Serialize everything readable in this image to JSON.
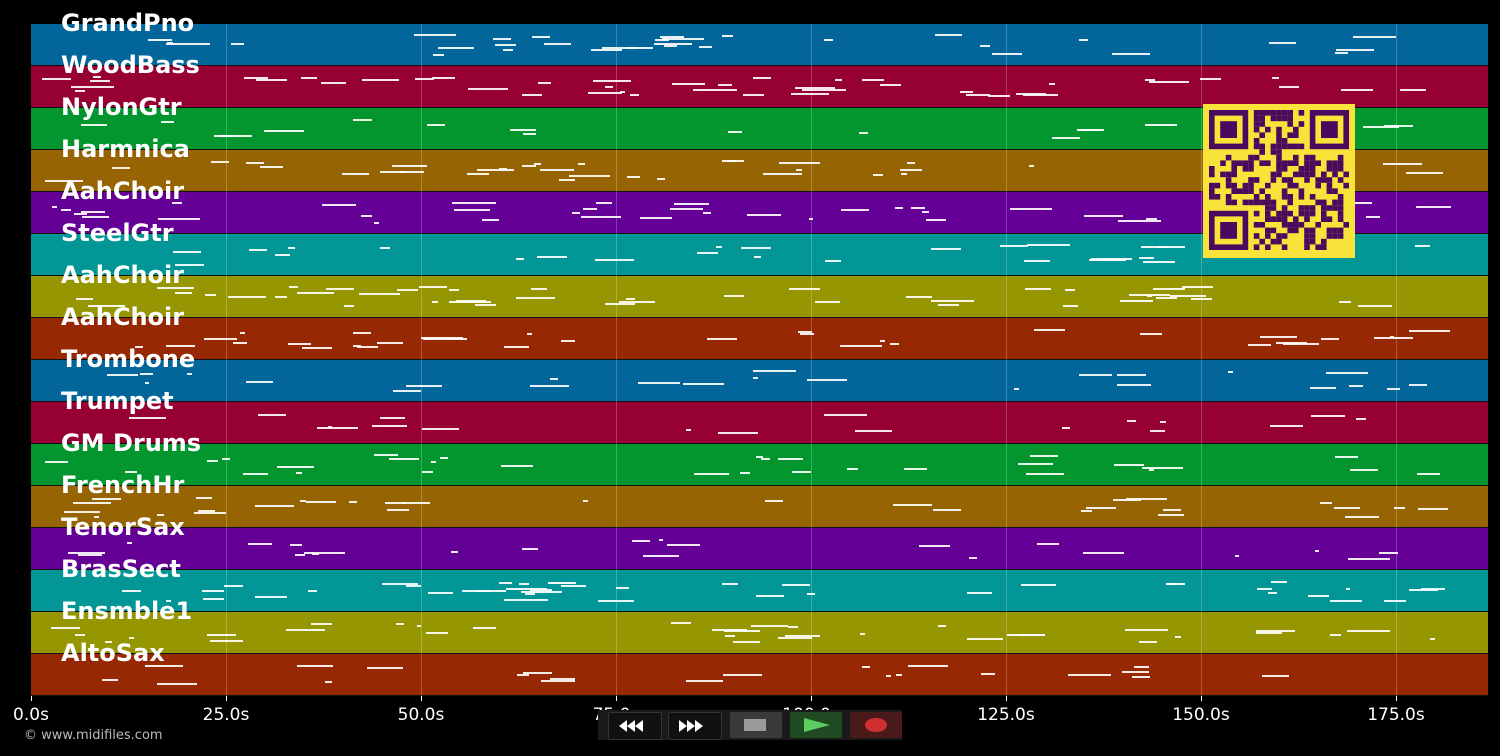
{
  "tracks": [
    {
      "name": "GrandPno",
      "color": "#03669a"
    },
    {
      "name": "WoodBass",
      "color": "#960034"
    },
    {
      "name": "NylonGtr",
      "color": "#03962e"
    },
    {
      "name": "Harmnica",
      "color": "#966403"
    },
    {
      "name": "AahChoir",
      "color": "#640096"
    },
    {
      "name": "SteelGtr",
      "color": "#039696"
    },
    {
      "name": "AahChoir",
      "color": "#969603"
    },
    {
      "name": "AahChoir",
      "color": "#962803"
    },
    {
      "name": "Trombone",
      "color": "#03669a"
    },
    {
      "name": "Trumpet",
      "color": "#960034"
    },
    {
      "name": "GM Drums",
      "color": "#03962e"
    },
    {
      "name": "FrenchHr",
      "color": "#966403"
    },
    {
      "name": "TenorSax",
      "color": "#640096"
    },
    {
      "name": "BrasSect",
      "color": "#039696"
    },
    {
      "name": "Ensmble1",
      "color": "#969603"
    },
    {
      "name": "AltoSax",
      "color": "#962803"
    }
  ],
  "time_axis": {
    "ticks": [
      "0.0s",
      "25.0s",
      "50.0s",
      "75.0s",
      "100.0s",
      "125.0s",
      "150.0s",
      "175.0s"
    ],
    "tick_values": [
      0,
      25,
      50,
      75,
      100,
      125,
      150,
      175
    ],
    "max_seconds": 186.8
  },
  "copyright": "© www.midifiles.com",
  "controls": {
    "rewind": "rewind-icon",
    "fast_forward": "fast-forward-icon",
    "stop": "stop-icon",
    "play": "play-icon",
    "record": "record-icon"
  },
  "qr_code": {
    "foreground": "#4a0a5e",
    "background": "#f7e33a"
  }
}
